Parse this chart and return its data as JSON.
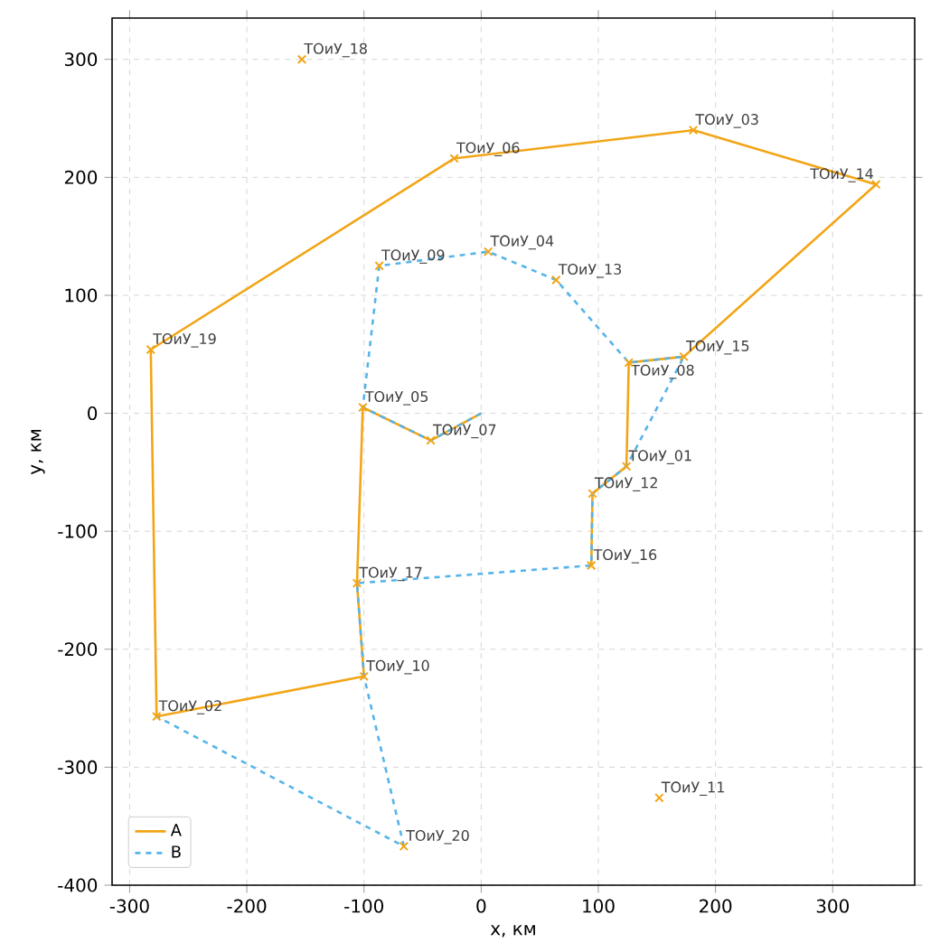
{
  "chart_data": {
    "type": "line",
    "xlabel": "x, км",
    "ylabel": "y, км",
    "xlim": [
      -315,
      370
    ],
    "ylim": [
      -400,
      335
    ],
    "xticks": [
      -300,
      -200,
      -100,
      0,
      100,
      200,
      300
    ],
    "yticks": [
      -400,
      -300,
      -200,
      -100,
      0,
      100,
      200,
      300
    ],
    "grid": true,
    "legend": "bottom left",
    "series": [
      {
        "name": "A",
        "color": "#f2a516",
        "line_style": "solid",
        "marker": "none",
        "x": [
          0,
          -43,
          -101,
          -106,
          -100,
          -277,
          -282,
          -23,
          181,
          337,
          173,
          126,
          124,
          95,
          94
        ],
        "values": [
          0,
          -23,
          5,
          -144,
          -223,
          -257,
          54,
          216,
          240,
          194,
          48,
          43,
          -45,
          -68,
          -129
        ]
      },
      {
        "name": "B",
        "color": "#56b4e9",
        "line_style": "dashed",
        "marker": "none",
        "x": [
          0,
          -43,
          -101,
          -87,
          6,
          64,
          126,
          173,
          124,
          95,
          94,
          -106,
          -100,
          -66,
          -277
        ],
        "values": [
          0,
          -23,
          5,
          125,
          137,
          113,
          43,
          48,
          -45,
          -68,
          -129,
          -144,
          -223,
          -367,
          -257
        ]
      },
      {
        "type": "scatter",
        "color": "#f2a516",
        "marker": "cross",
        "x": [
          124,
          -277,
          181,
          6,
          -101,
          -23,
          -43,
          126,
          -87,
          -100,
          152,
          95,
          64,
          337,
          173,
          94,
          -106,
          -153,
          -282,
          -66
        ],
        "values": [
          -45,
          -257,
          240,
          137,
          5,
          216,
          -23,
          43,
          125,
          -223,
          -326,
          -68,
          113,
          194,
          48,
          -129,
          -144,
          300,
          54,
          -367
        ]
      }
    ],
    "annotations": [
      {
        "text": "ТОиУ_01",
        "x": 124,
        "y": -45
      },
      {
        "text": "ТОиУ_02",
        "x": -277,
        "y": -257
      },
      {
        "text": "ТОиУ_03",
        "x": 181,
        "y": 240
      },
      {
        "text": "ТОиУ_04",
        "x": 6,
        "y": 137
      },
      {
        "text": "ТОиУ_05",
        "x": -101,
        "y": 5
      },
      {
        "text": "ТОиУ_06",
        "x": -23,
        "y": 216
      },
      {
        "text": "ТОиУ_07",
        "x": -43,
        "y": -23
      },
      {
        "text": "ТОиУ_08",
        "x": 126,
        "y": 43
      },
      {
        "text": "ТОиУ_09",
        "x": -87,
        "y": 125
      },
      {
        "text": "ТОиУ_10",
        "x": -100,
        "y": -223
      },
      {
        "text": "ТОиУ_11",
        "x": 152,
        "y": -326
      },
      {
        "text": "ТОиУ_12",
        "x": 95,
        "y": -68
      },
      {
        "text": "ТОиУ_13",
        "x": 64,
        "y": 113
      },
      {
        "text": "ТОиУ_14",
        "x": 337,
        "y": 194
      },
      {
        "text": "ТОиУ_15",
        "x": 173,
        "y": 48
      },
      {
        "text": "ТОиУ_16",
        "x": 94,
        "y": -129
      },
      {
        "text": "ТОиУ_17",
        "x": -106,
        "y": -144
      },
      {
        "text": "ТОиУ_18",
        "x": -153,
        "y": 300
      },
      {
        "text": "ТОиУ_19",
        "x": -282,
        "y": 54
      },
      {
        "text": "ТОиУ_20",
        "x": -66,
        "y": -367
      }
    ]
  }
}
